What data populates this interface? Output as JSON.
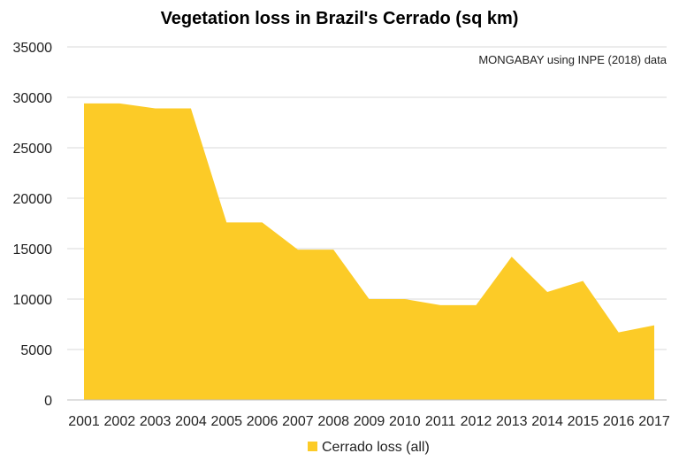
{
  "chart_data": {
    "type": "area",
    "title": "Vegetation loss in Brazil's Cerrado (sq km)",
    "source_note": "MONGABAY using INPE (2018) data",
    "xlabel": "",
    "ylabel": "",
    "categories": [
      "2001",
      "2002",
      "2003",
      "2004",
      "2005",
      "2006",
      "2007",
      "2008",
      "2009",
      "2010",
      "2011",
      "2012",
      "2013",
      "2014",
      "2015",
      "2016",
      "2017"
    ],
    "series": [
      {
        "name": "Cerrado loss (all)",
        "color": "#FCCB27",
        "values": [
          29400,
          29400,
          28900,
          28900,
          17600,
          17600,
          14900,
          14900,
          10000,
          10000,
          9400,
          9400,
          14200,
          10700,
          11800,
          6700,
          7400
        ]
      }
    ],
    "ylim": [
      0,
      35000
    ],
    "yticks": [
      "0",
      "5000",
      "10000",
      "15000",
      "20000",
      "25000",
      "30000",
      "35000"
    ],
    "grid": true,
    "legend_position": "bottom"
  }
}
